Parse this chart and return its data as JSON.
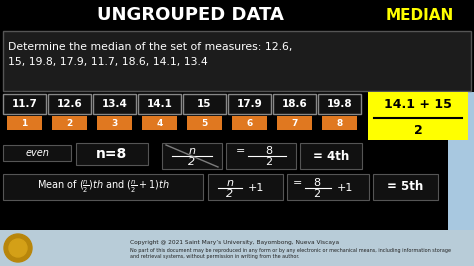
{
  "title": "UNGROUPED DATA",
  "title_right": "MEDIAN",
  "bg_color": "#000000",
  "question_line1": "Determine the median of the set of measures: 12.6,",
  "question_line2": "15, 19.8, 17.9, 11.7, 18.6, 14.1, 13.4",
  "sorted_values": [
    "11.7",
    "12.6",
    "13.4",
    "14.1",
    "15",
    "17.9",
    "18.6",
    "19.8"
  ],
  "indices": [
    "1",
    "2",
    "3",
    "4",
    "5",
    "6",
    "7",
    "8"
  ],
  "orange_color": "#e07820",
  "dark_box": "#111111",
  "yellow_bg": "#ffff00",
  "light_blue": "#a8c8e0",
  "footer_bg": "#b8ccd8",
  "footer_text1": "Copyright @ 2021 Saint Mary’s University, Bayombong, Nueva Viscaya",
  "footer_text2": "No part of this document may be reproduced in any form or by any electronic or mechanical means, including information storage",
  "footer_text3": "and retrieval systems, without permission in writing from the author."
}
